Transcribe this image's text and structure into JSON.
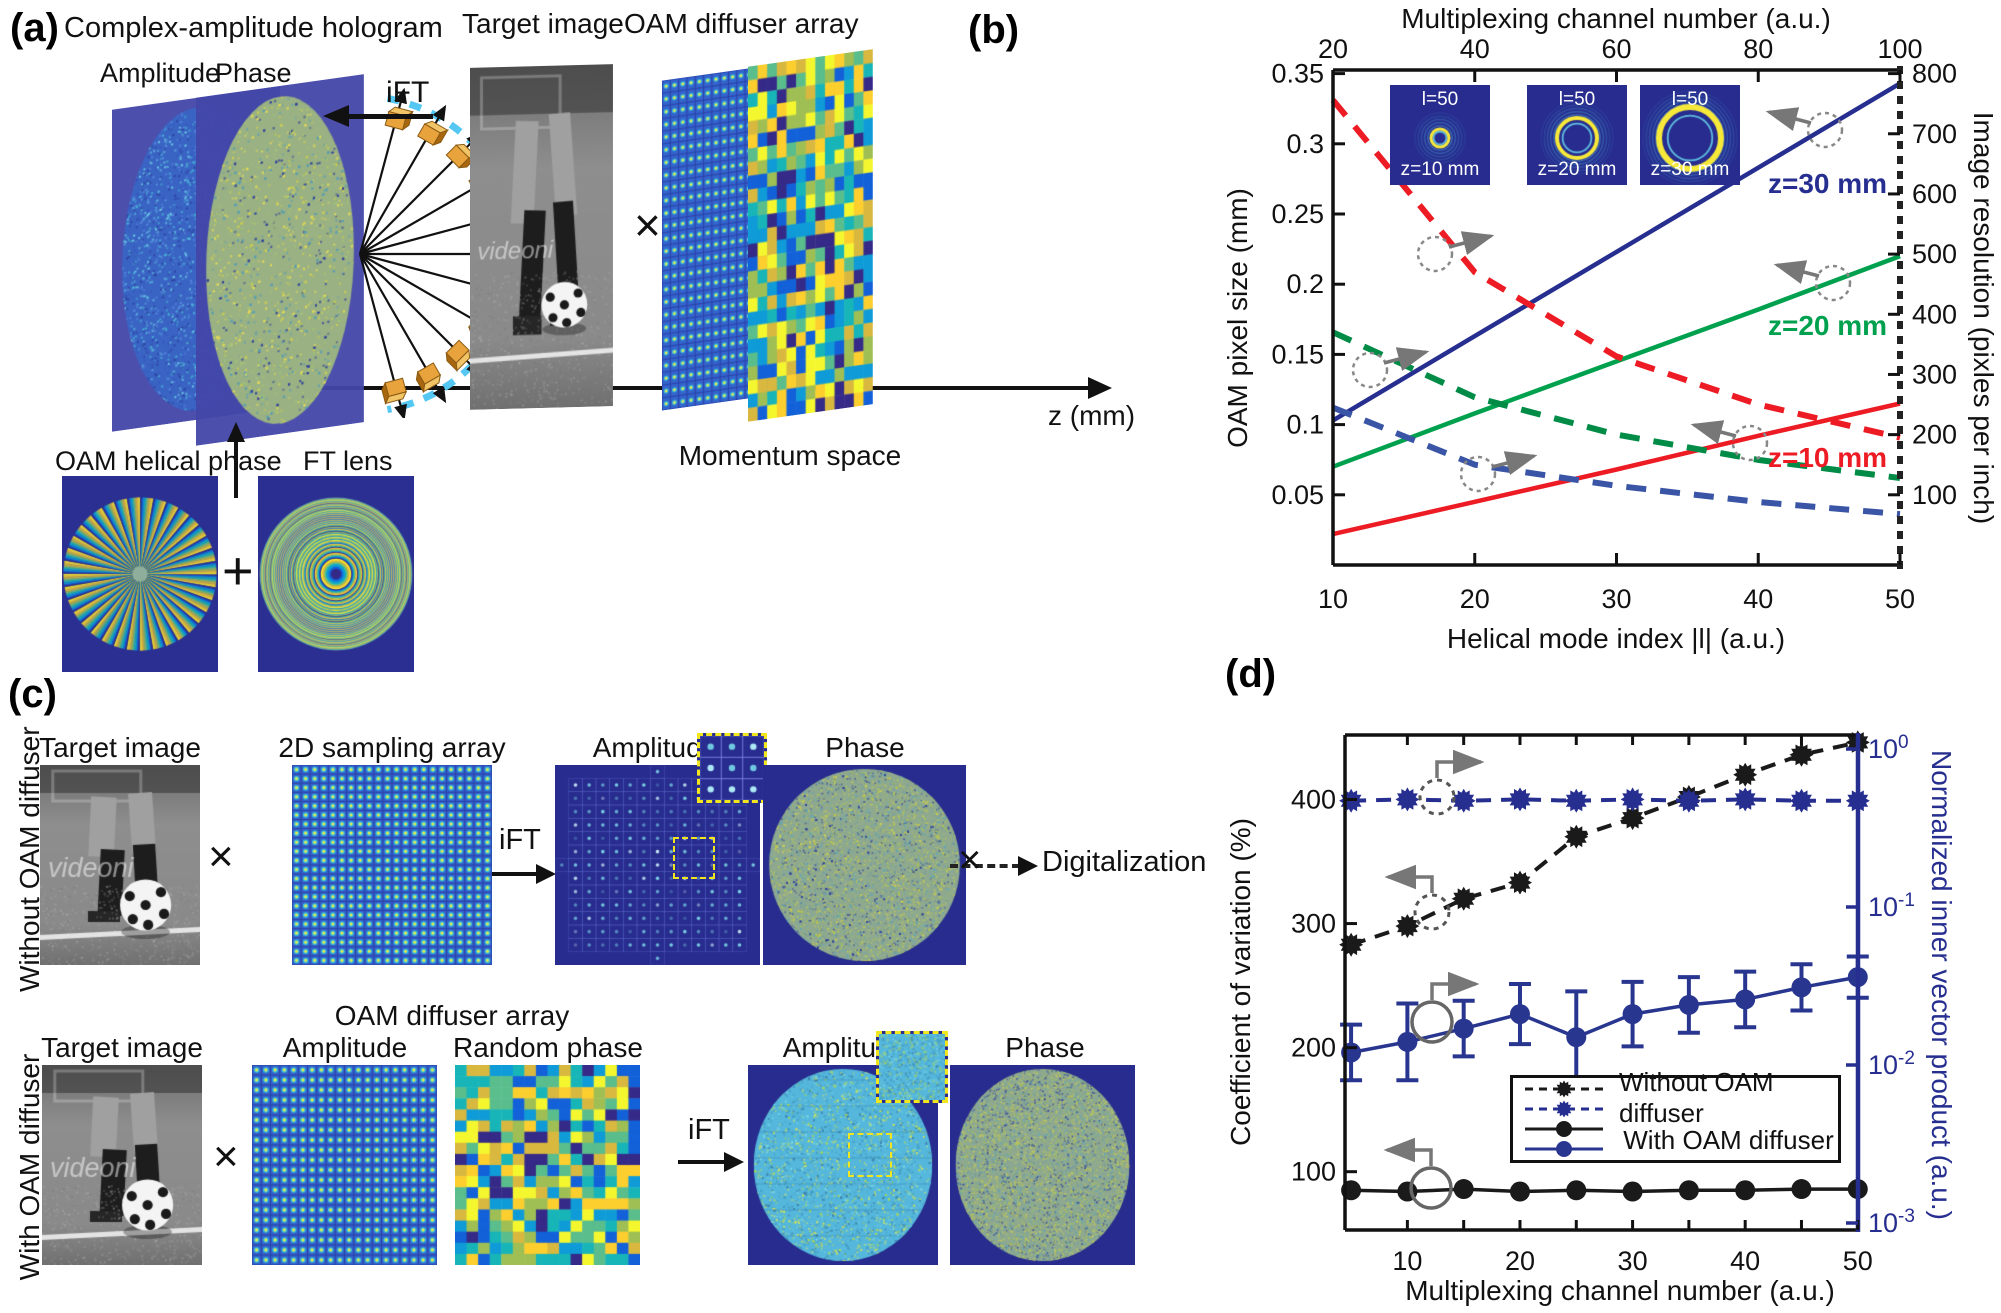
{
  "panel_a": {
    "label": "(a)",
    "title": "Complex-amplitude hologram",
    "amplitude_label": "Amplitude",
    "phase_label": "Phase",
    "ift_label": "iFT",
    "target_image_label": "Target image",
    "oam_diffuser_array_label": "OAM diffuser array",
    "multiply_sign": "×",
    "z_axis_label": "z (mm)",
    "momentum_space_label": "Momentum space",
    "oam_helical_phase_label": "OAM helical phase",
    "plus_sign": "+",
    "ft_lens_label": "FT lens",
    "watermark": "videoni"
  },
  "panel_b": {
    "label": "(b)",
    "insets": [
      {
        "l_label": "l=50",
        "z_label": "z=10 mm"
      },
      {
        "l_label": "l=50",
        "z_label": "z=20 mm"
      },
      {
        "l_label": "l=50",
        "z_label": "z=30 mm"
      }
    ],
    "series_labels": [
      {
        "text": "z=30 mm",
        "color": "#262e8f"
      },
      {
        "text": "z=20 mm",
        "color": "#00a14e"
      },
      {
        "text": "z=10 mm",
        "color": "#ed1c24"
      }
    ]
  },
  "panel_c": {
    "label": "(c)",
    "row1_label": "Without OAM diffuser",
    "row2_label": "With OAM diffuser",
    "target_image_label": "Target image",
    "sampling_array_label": "2D sampling array",
    "amplitude_label": "Amplitude",
    "phase_label": "Phase",
    "ift_label": "iFT",
    "multiply_sign": "×",
    "digitalization_label": "Digitalization",
    "oam_diffuser_array_label": "OAM diffuser array",
    "target_image2_label": "Target image",
    "amplitude2_label": "Amplitude",
    "random_phase_label": "Random phase",
    "ift2_label": "iFT",
    "amplitude_result_label": "Amplitude",
    "phase_result_label": "Phase"
  },
  "panel_d": {
    "label": "(d)",
    "legend": {
      "without": "Without OAM diffuser",
      "with": "With OAM diffuser"
    }
  },
  "chart_data": [
    {
      "panel": "b",
      "type": "line",
      "x": [
        10,
        20,
        30,
        40,
        50
      ],
      "xlabel": "Helical mode index |l| (a.u.)",
      "xticks": [
        10,
        20,
        30,
        40,
        50
      ],
      "top_xlabel": "Multiplexing channel number (a.u.)",
      "top_xticks": [
        20,
        40,
        60,
        80,
        100
      ],
      "ylabel_left": "OAM pixel size (mm)",
      "yticks_left": [
        0.05,
        0.1,
        0.15,
        0.2,
        0.25,
        0.3,
        0.35
      ],
      "ylim_left": [
        0,
        0.355
      ],
      "ylabel_right": "Image resolution (pixles per inch)",
      "yticks_right": [
        100,
        200,
        300,
        400,
        500,
        600,
        700,
        800
      ],
      "right_axis_alignment": {
        "right_100_equals_left": 0.05,
        "right_800_equals_left": 0.35
      },
      "grid": false,
      "series": [
        {
          "name": "z=30 mm OAM pixel size",
          "axis": "left",
          "line": "solid",
          "color": "#262e8f",
          "values": [
            0.103,
            0.163,
            0.223,
            0.283,
            0.343
          ]
        },
        {
          "name": "z=20 mm OAM pixel size",
          "axis": "left",
          "line": "solid",
          "color": "#00a14e",
          "values": [
            0.07,
            0.108,
            0.145,
            0.182,
            0.22
          ]
        },
        {
          "name": "z=10 mm OAM pixel size",
          "axis": "left",
          "line": "solid",
          "color": "#ed1c24",
          "values": [
            0.022,
            0.045,
            0.068,
            0.092,
            0.115
          ]
        },
        {
          "name": "z=10 mm image resolution",
          "axis": "right",
          "line": "dashed",
          "color": "#ed1c24",
          "values": [
            756,
            470,
            330,
            250,
            195
          ]
        },
        {
          "name": "z=20 mm image resolution",
          "axis": "right",
          "line": "dashed",
          "color": "#008c46",
          "values": [
            370,
            262,
            200,
            158,
            128
          ]
        },
        {
          "name": "z=30 mm image resolution",
          "axis": "right",
          "line": "dashed",
          "color": "#3a55a5",
          "values": [
            245,
            150,
            115,
            88,
            68
          ]
        }
      ]
    },
    {
      "panel": "d",
      "type": "line",
      "x": [
        5,
        10,
        15,
        20,
        25,
        30,
        35,
        40,
        45,
        50
      ],
      "xlabel": "Multiplexing channel number (a.u.)",
      "xticks": [
        10,
        20,
        30,
        40,
        50
      ],
      "ylabel_left": "Coefficient of variation (%)",
      "yticks_left": [
        100,
        200,
        300,
        400
      ],
      "ylim_left": [
        53,
        452
      ],
      "ylabel_right": "Normalized inner vector product (a.u.)",
      "yticks_right": [
        {
          "base": "10",
          "exp": "0"
        },
        {
          "base": "10",
          "exp": "-1"
        },
        {
          "base": "10",
          "exp": "-2"
        },
        {
          "base": "10",
          "exp": "-3"
        }
      ],
      "ylim_right_log": [
        0.001,
        1
      ],
      "series": [
        {
          "name": "Without OAM diffuser - coefficient of variation",
          "axis": "left",
          "line": "dashed",
          "marker": "star",
          "color": "#1a1a1a",
          "values": [
            283,
            298,
            320,
            333,
            370,
            385,
            402,
            420,
            436,
            446
          ]
        },
        {
          "name": "Without OAM diffuser - normalized inner vector product",
          "axis": "right",
          "line": "dashed",
          "marker": "star",
          "color": "#262e8f",
          "values": [
            0.47,
            0.48,
            0.47,
            0.48,
            0.47,
            0.48,
            0.47,
            0.48,
            0.47,
            0.47
          ]
        },
        {
          "name": "With OAM diffuser - normalized inner vector product",
          "axis": "right",
          "line": "solid",
          "marker": "circle",
          "color": "#28368f",
          "values": [
            0.012,
            0.014,
            0.017,
            0.021,
            0.015,
            0.021,
            0.024,
            0.026,
            0.031,
            0.036
          ],
          "error_factor": [
            1.5,
            1.75,
            1.5,
            1.55,
            1.95,
            1.6,
            1.5,
            1.5,
            1.4,
            1.35
          ]
        },
        {
          "name": "With OAM diffuser - coefficient of variation",
          "axis": "left",
          "line": "solid",
          "marker": "circle",
          "color": "#1a1a1a",
          "values": [
            85,
            84,
            86,
            84,
            85,
            84,
            85,
            85,
            86,
            86
          ]
        }
      ],
      "legend": [
        "Without OAM diffuser",
        "With OAM diffuser"
      ]
    }
  ]
}
